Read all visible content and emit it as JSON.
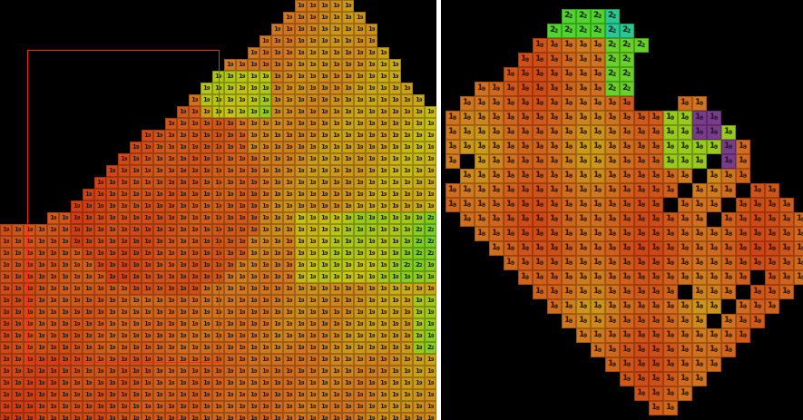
{
  "panels": {
    "left": {
      "cell_labels": {
        "main": "1",
        "sub": "9"
      },
      "accent_labels": {
        "main": "2",
        "sub": "2"
      }
    },
    "right": {
      "cell_labels": {
        "main": "1",
        "sub": "9"
      },
      "accent_labels": {
        "main": "2",
        "sub": "2"
      }
    }
  },
  "colors": {
    "background": "#000000",
    "selection": "#ff2020",
    "red": "#d13a12",
    "orange": "#d2761e",
    "yellow": "#c8c212",
    "green": "#4fd62a",
    "teal": "#27c893",
    "purple": "#7a3b8c"
  }
}
